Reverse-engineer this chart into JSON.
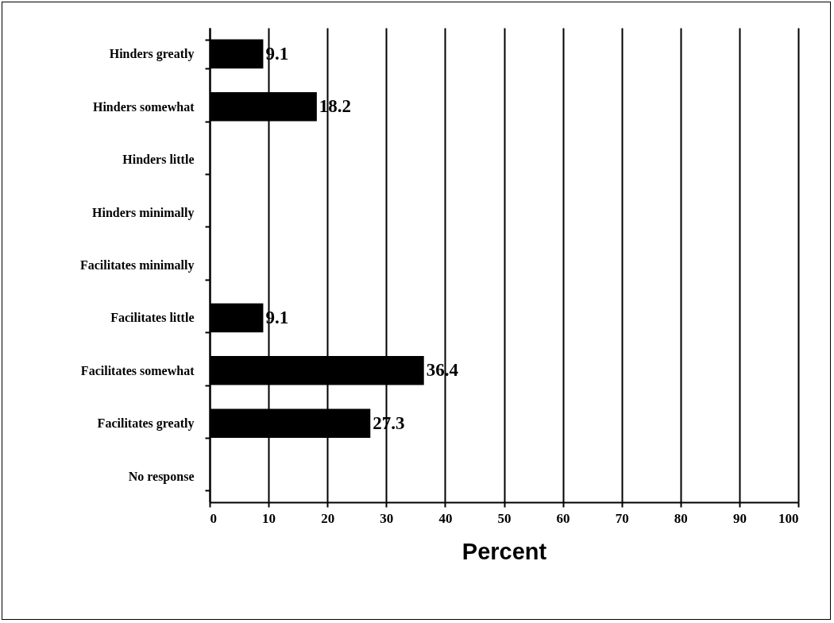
{
  "chart_data": {
    "type": "bar",
    "orientation": "horizontal",
    "xlabel": "Percent",
    "categories": [
      "Hinders greatly",
      "Hinders somewhat",
      "Hinders little",
      "Hinders minimally",
      "Facilitates minimally",
      "Facilitates little",
      "Facilitates somewhat",
      "Facilitates greatly",
      "No response"
    ],
    "values": [
      9.1,
      18.2,
      null,
      null,
      null,
      9.1,
      36.4,
      27.3,
      null
    ],
    "color": "#000000",
    "xlim": [
      0,
      100
    ],
    "xticks": [
      0,
      10,
      20,
      30,
      40,
      50,
      60,
      70,
      80,
      90,
      100
    ],
    "grid": "x",
    "data_labels": true
  }
}
